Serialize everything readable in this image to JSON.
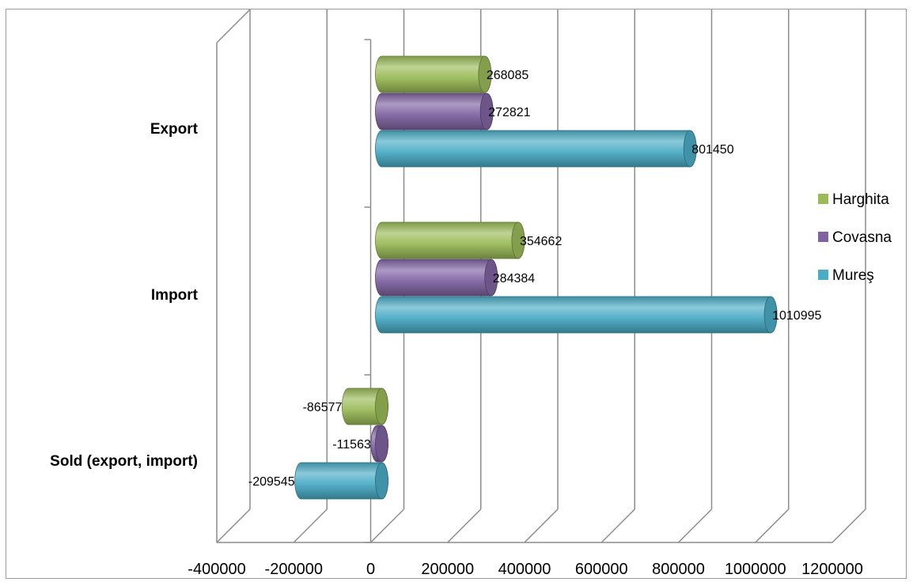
{
  "chart_data": {
    "type": "bar",
    "orientation": "horizontal",
    "style": "3d-cylinder",
    "categories": [
      "Export",
      "Import",
      "Sold (export, import)"
    ],
    "series": [
      {
        "name": "Harghita",
        "values": [
          268085,
          354662,
          -86577
        ],
        "color": "#9bbb59"
      },
      {
        "name": "Covasna",
        "values": [
          272821,
          284384,
          -11563
        ],
        "color": "#8064a2"
      },
      {
        "name": "Mureş",
        "values": [
          801450,
          1010995,
          -209545
        ],
        "color": "#4bacc6"
      }
    ],
    "x_ticks": [
      "-400000",
      "-200000",
      "0",
      "200000",
      "400000",
      "600000",
      "800000",
      "1000000",
      "1200000"
    ],
    "xlim": [
      -400000,
      1200000
    ],
    "data_labels": [
      [
        "268085",
        "354662",
        "-86577"
      ],
      [
        "272821",
        "284384",
        "-11563"
      ],
      [
        "801450",
        "1010995",
        "-209545"
      ]
    ],
    "legend": [
      "Harghita",
      "Covasna",
      "Mureş"
    ],
    "legend_position": "right",
    "grid": true,
    "title": "",
    "xlabel": "",
    "ylabel": ""
  }
}
